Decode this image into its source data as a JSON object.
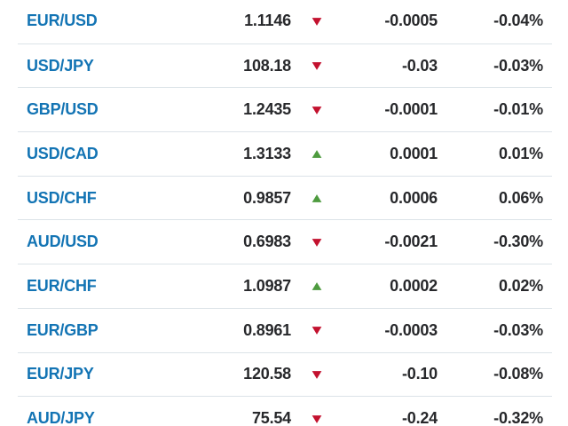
{
  "colors": {
    "pair_link": "#1374b4",
    "value_text": "#27282b",
    "divider": "#dce3e8",
    "up": "#4e9b3f",
    "down": "#c3112e"
  },
  "icons": {
    "up": "▲",
    "down": "▼"
  },
  "rates": {
    "rows": [
      {
        "pair": "EUR/USD",
        "price": "1.1146",
        "direction": "down",
        "change": "-0.0005",
        "pct": "-0.04%"
      },
      {
        "pair": "USD/JPY",
        "price": "108.18",
        "direction": "down",
        "change": "-0.03",
        "pct": "-0.03%"
      },
      {
        "pair": "GBP/USD",
        "price": "1.2435",
        "direction": "down",
        "change": "-0.0001",
        "pct": "-0.01%"
      },
      {
        "pair": "USD/CAD",
        "price": "1.3133",
        "direction": "up",
        "change": "0.0001",
        "pct": "0.01%"
      },
      {
        "pair": "USD/CHF",
        "price": "0.9857",
        "direction": "up",
        "change": "0.0006",
        "pct": "0.06%"
      },
      {
        "pair": "AUD/USD",
        "price": "0.6983",
        "direction": "down",
        "change": "-0.0021",
        "pct": "-0.30%"
      },
      {
        "pair": "EUR/CHF",
        "price": "1.0987",
        "direction": "up",
        "change": "0.0002",
        "pct": "0.02%"
      },
      {
        "pair": "EUR/GBP",
        "price": "0.8961",
        "direction": "down",
        "change": "-0.0003",
        "pct": "-0.03%"
      },
      {
        "pair": "EUR/JPY",
        "price": "120.58",
        "direction": "down",
        "change": "-0.10",
        "pct": "-0.08%"
      },
      {
        "pair": "AUD/JPY",
        "price": "75.54",
        "direction": "down",
        "change": "-0.24",
        "pct": "-0.32%"
      }
    ]
  }
}
